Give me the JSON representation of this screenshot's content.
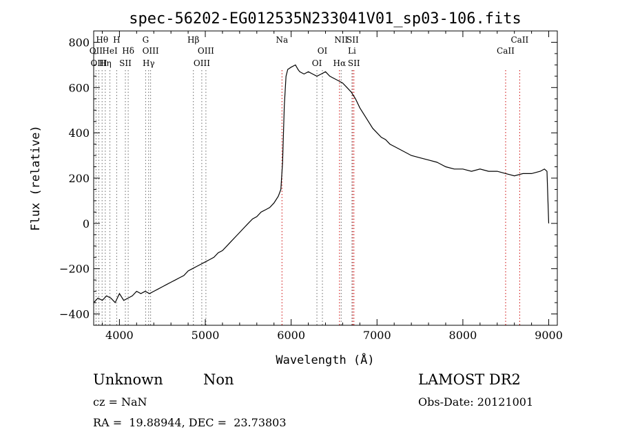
{
  "chart_data": {
    "type": "line",
    "title": "spec-56202-EG012535N233041V01_sp03-106.fits",
    "xlabel": "Wavelength (Å)",
    "ylabel": "Flux (relative)",
    "xlim": [
      3700,
      9100
    ],
    "ylim": [
      -450,
      850
    ],
    "x_ticks": [
      4000,
      5000,
      6000,
      7000,
      8000,
      9000
    ],
    "y_ticks": [
      -400,
      -200,
      0,
      200,
      400,
      600,
      800
    ],
    "grid": false,
    "series": [
      {
        "x": [
          3700,
          3750,
          3800,
          3850,
          3900,
          3950,
          4000,
          4050,
          4100,
          4150,
          4200,
          4250,
          4300,
          4350,
          4400,
          4450,
          4500,
          4550,
          4600,
          4650,
          4700,
          4750,
          4800,
          4850,
          4900,
          4950,
          5000,
          5050,
          5100,
          5150,
          5200,
          5250,
          5300,
          5350,
          5400,
          5450,
          5500,
          5550,
          5600,
          5650,
          5700,
          5750,
          5800,
          5850,
          5880,
          5900,
          5920,
          5940,
          5960,
          6000,
          6050,
          6080,
          6100,
          6150,
          6200,
          6250,
          6300,
          6350,
          6400,
          6450,
          6500,
          6550,
          6600,
          6650,
          6700,
          6750,
          6800,
          6850,
          6900,
          6950,
          7000,
          7050,
          7100,
          7150,
          7200,
          7300,
          7400,
          7500,
          7600,
          7700,
          7800,
          7900,
          8000,
          8100,
          8200,
          8300,
          8400,
          8500,
          8600,
          8700,
          8800,
          8900,
          8950,
          8980,
          9000
        ],
        "values": [
          -350,
          -330,
          -340,
          -320,
          -330,
          -350,
          -310,
          -340,
          -330,
          -320,
          -300,
          -310,
          -300,
          -310,
          -300,
          -290,
          -280,
          -270,
          -260,
          -250,
          -240,
          -230,
          -210,
          -200,
          -190,
          -180,
          -170,
          -160,
          -150,
          -130,
          -120,
          -100,
          -80,
          -60,
          -40,
          -20,
          0,
          20,
          30,
          50,
          60,
          70,
          90,
          120,
          150,
          270,
          520,
          650,
          680,
          690,
          700,
          680,
          670,
          660,
          670,
          660,
          650,
          660,
          670,
          650,
          640,
          630,
          620,
          600,
          580,
          550,
          510,
          480,
          450,
          420,
          400,
          380,
          370,
          350,
          340,
          320,
          300,
          290,
          280,
          270,
          250,
          240,
          240,
          230,
          240,
          230,
          230,
          220,
          210,
          220,
          220,
          230,
          240,
          230,
          0
        ]
      }
    ],
    "line_markers": [
      {
        "label": "Hθ",
        "wavelength": 3798,
        "row": 0
      },
      {
        "label": "OII",
        "wavelength": 3727,
        "row": 1
      },
      {
        "label": "OIII",
        "wavelength": 3760,
        "row": 2
      },
      {
        "label": "HeI",
        "wavelength": 3889,
        "row": 1
      },
      {
        "label": "Hη",
        "wavelength": 3835,
        "row": 2
      },
      {
        "label": "H",
        "wavelength": 3968,
        "row": 0
      },
      {
        "label": "Hδ",
        "wavelength": 4102,
        "row": 1
      },
      {
        "label": "SII",
        "wavelength": 4069,
        "row": 2
      },
      {
        "label": "G",
        "wavelength": 4305,
        "row": 0
      },
      {
        "label": "OIII",
        "wavelength": 4363,
        "row": 1
      },
      {
        "label": "Hγ",
        "wavelength": 4340,
        "row": 2
      },
      {
        "label": "Hβ",
        "wavelength": 4861,
        "row": 0
      },
      {
        "label": "OIII",
        "wavelength": 5007,
        "row": 1
      },
      {
        "label": "OIII",
        "wavelength": 4959,
        "row": 2
      },
      {
        "label": "Na",
        "wavelength": 5893,
        "row": 0
      },
      {
        "label": "OI",
        "wavelength": 6364,
        "row": 1
      },
      {
        "label": "OI",
        "wavelength": 6300,
        "row": 2
      },
      {
        "label": "NII",
        "wavelength": 6583,
        "row": 0
      },
      {
        "label": "SII",
        "wavelength": 6716,
        "row": 0
      },
      {
        "label": "Li",
        "wavelength": 6708,
        "row": 1
      },
      {
        "label": "Hα",
        "wavelength": 6563,
        "row": 2
      },
      {
        "label": "SII",
        "wavelength": 6731,
        "row": 2
      },
      {
        "label": "CaII",
        "wavelength": 8662,
        "row": 0
      },
      {
        "label": "CaII",
        "wavelength": 8498,
        "row": 1
      }
    ],
    "red_lines": [
      5893,
      6563,
      6716,
      6731,
      8498,
      8662
    ]
  },
  "info": {
    "class": "Unknown",
    "subclass": "Non",
    "survey": "LAMOST DR2",
    "cz": "cz = NaN",
    "obs_date": "Obs-Date: 20121001",
    "coords": "RA =  19.88944, DEC =  23.73803"
  }
}
